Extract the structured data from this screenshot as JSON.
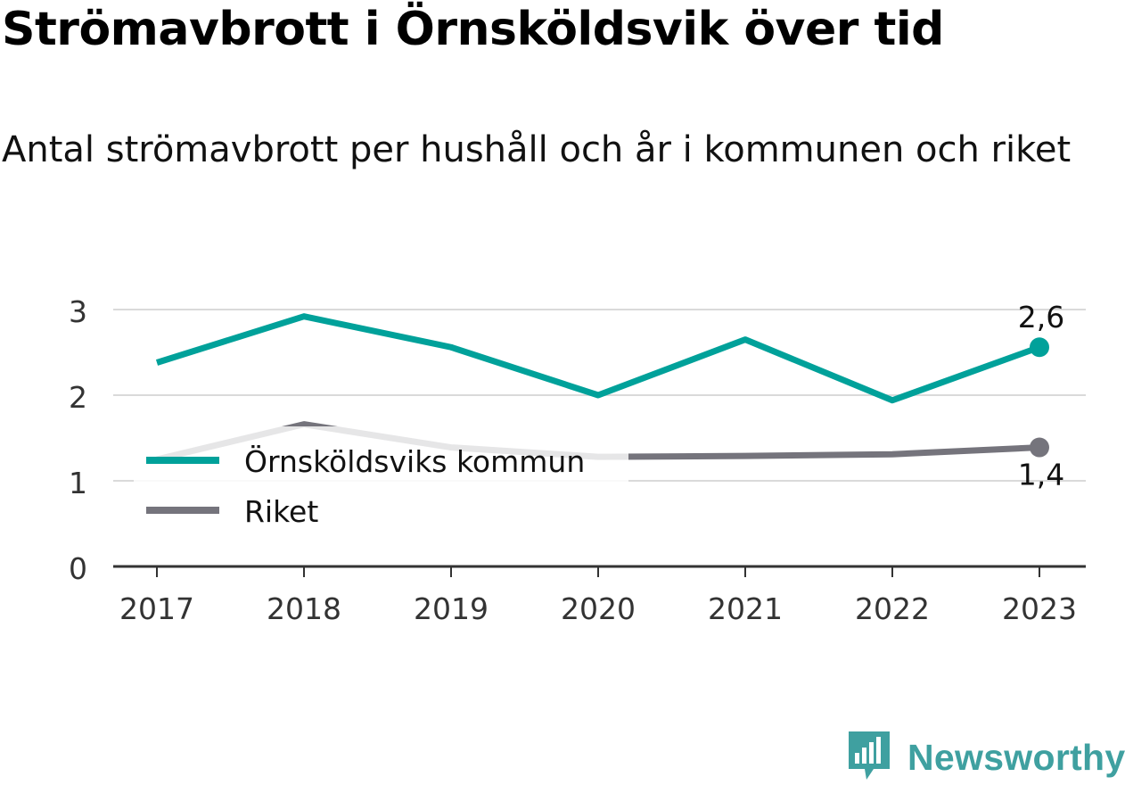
{
  "title": "Strömavbrott i Örnsköldsvik över tid",
  "subtitle": "Antal strömavbrott per hushåll och år i kommunen och riket",
  "brand": {
    "name": "Newsworthy",
    "logo_icon": "bar-chart-speech-bubble-icon",
    "color": "#3fa0a0"
  },
  "chart_data": {
    "type": "line",
    "title": "",
    "xlabel": "",
    "ylabel": "",
    "x": [
      "2017",
      "2018",
      "2019",
      "2020",
      "2021",
      "2022",
      "2023"
    ],
    "y_ticks": [
      "0",
      "1",
      "2",
      "3"
    ],
    "ylim": [
      0,
      3.1
    ],
    "grid": true,
    "legend_position": "left",
    "series": [
      {
        "name": "Örnsköldsviks kommun",
        "color": "#00a19a",
        "values": [
          2.38,
          2.92,
          2.56,
          2.0,
          2.65,
          1.94,
          2.56
        ],
        "end_label": "2,6"
      },
      {
        "name": "Riket",
        "color": "#75747c",
        "values": [
          1.25,
          1.66,
          1.39,
          1.28,
          1.29,
          1.31,
          1.39
        ],
        "end_label": "1,4"
      }
    ]
  }
}
